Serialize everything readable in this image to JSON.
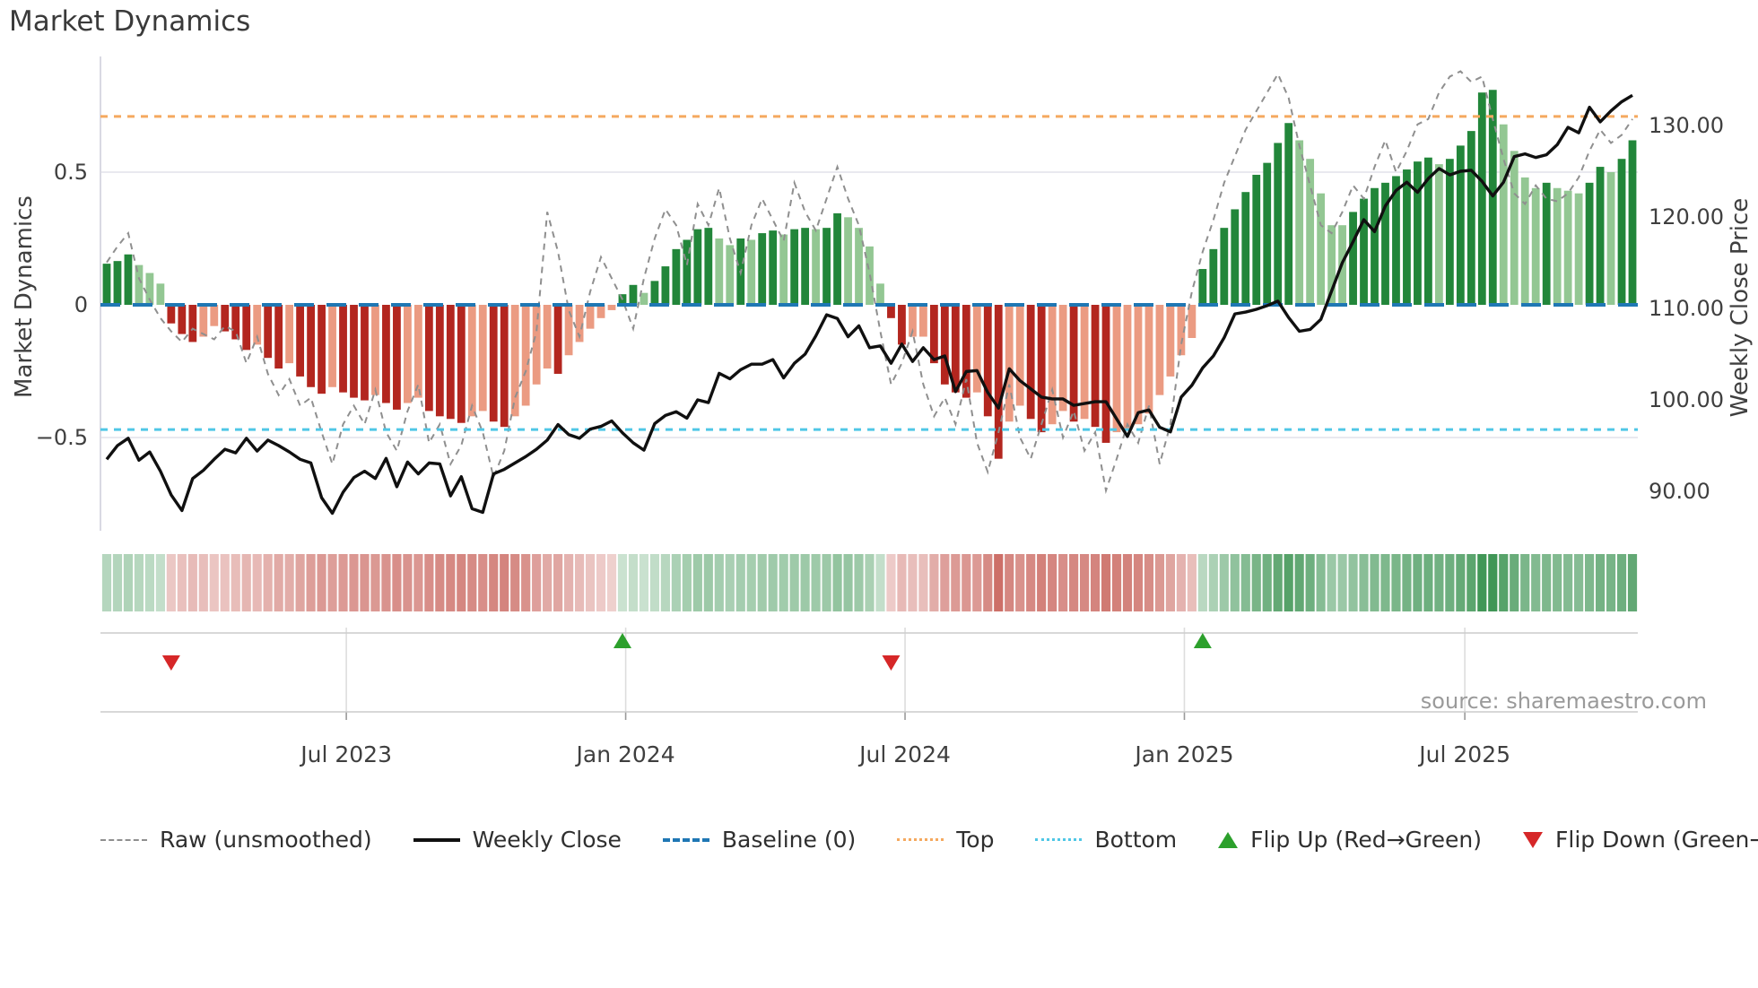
{
  "title": "Market Dynamics",
  "source_text": "source: sharemaestro.com",
  "axes": {
    "left_label": "Market Dynamics",
    "right_label": "Weekly Close Price",
    "left_ticks": [
      {
        "label": "0.5",
        "value": 0.5
      },
      {
        "label": "0",
        "value": 0
      },
      {
        "label": "−0.5",
        "value": -0.5
      }
    ],
    "right_ticks": [
      {
        "label": "130.00",
        "value": 130
      },
      {
        "label": "120.00",
        "value": 120
      },
      {
        "label": "110.00",
        "value": 110
      },
      {
        "label": "100.00",
        "value": 100
      },
      {
        "label": "90.00",
        "value": 90
      }
    ],
    "x_ticks": [
      {
        "label": "Jul 2023",
        "week": 22.3
      },
      {
        "label": "Jan 2024",
        "week": 48.3
      },
      {
        "label": "Jul 2024",
        "week": 74.3
      },
      {
        "label": "Jan 2025",
        "week": 100.3
      },
      {
        "label": "Jul 2025",
        "week": 126.4
      }
    ]
  },
  "legend": {
    "items": [
      {
        "label": "Raw (unsmoothed)",
        "swatch": "raw"
      },
      {
        "label": "Weekly Close",
        "swatch": "close"
      },
      {
        "label": "Baseline (0)",
        "swatch": "baseline"
      },
      {
        "label": "Top",
        "swatch": "top"
      },
      {
        "label": "Bottom",
        "swatch": "bottom"
      },
      {
        "label": "Flip Up (Red→Green)",
        "swatch": "flip_up"
      },
      {
        "label": "Flip Down (Green→Red)",
        "swatch": "flip_down"
      }
    ]
  },
  "colors": {
    "bar_up_strong": "#22863a",
    "bar_up_light": "#93c793",
    "bar_down_strong": "#b3261f",
    "bar_down_light": "#eb9b82",
    "weekly_close": "#101010",
    "raw": "#8f8f8f",
    "baseline": "#1f77b4",
    "top": "#f5a95f",
    "bottom": "#4fc7e6",
    "flip_up": "#2ca02c",
    "flip_down": "#d62728",
    "grid": "#e9e9ef",
    "strip_line": "#cccccc",
    "strip_grid": "#dddddd",
    "axis_text": "#3f3f3f",
    "heat_up": "#2e8c46",
    "heat_down": "#b9372d"
  },
  "chart_data": {
    "type": "composite",
    "subtype": "oscillator bars + price line + raw dashed line + heatmap + flip markers",
    "frequency": "weekly",
    "n_weeks": 143,
    "title": "Market Dynamics",
    "ylabel_left": "Market Dynamics",
    "ylabel_right": "Weekly Close Price",
    "ylim_left": [
      -0.85,
      0.94
    ],
    "ylim_right": [
      85.7,
      137.5
    ],
    "baseline": 0,
    "top_band": 0.71,
    "bottom_band": -0.47,
    "grid": "horizontal at 0.5, 0, -0.5",
    "legend_position": "bottom row",
    "oscillator_bars": [
      0.155,
      0.165,
      0.19,
      0.15,
      0.12,
      0.08,
      -0.07,
      -0.11,
      -0.14,
      -0.12,
      -0.08,
      -0.1,
      -0.13,
      -0.17,
      -0.15,
      -0.2,
      -0.24,
      -0.22,
      -0.27,
      -0.31,
      -0.335,
      -0.31,
      -0.33,
      -0.35,
      -0.36,
      -0.34,
      -0.37,
      -0.395,
      -0.37,
      -0.35,
      -0.4,
      -0.42,
      -0.43,
      -0.445,
      -0.42,
      -0.4,
      -0.44,
      -0.46,
      -0.42,
      -0.38,
      -0.3,
      -0.24,
      -0.26,
      -0.19,
      -0.14,
      -0.09,
      -0.05,
      -0.02,
      0.04,
      0.075,
      0.045,
      0.09,
      0.145,
      0.21,
      0.245,
      0.285,
      0.29,
      0.25,
      0.225,
      0.25,
      0.245,
      0.27,
      0.28,
      0.265,
      0.285,
      0.29,
      0.285,
      0.29,
      0.345,
      0.33,
      0.29,
      0.22,
      0.08,
      -0.05,
      -0.15,
      -0.12,
      -0.12,
      -0.22,
      -0.3,
      -0.33,
      -0.35,
      -0.33,
      -0.42,
      -0.58,
      -0.44,
      -0.38,
      -0.43,
      -0.48,
      -0.45,
      -0.4,
      -0.44,
      -0.43,
      -0.46,
      -0.52,
      -0.48,
      -0.47,
      -0.45,
      -0.41,
      -0.34,
      -0.27,
      -0.19,
      -0.125,
      0.135,
      0.21,
      0.29,
      0.36,
      0.425,
      0.49,
      0.535,
      0.61,
      0.685,
      0.62,
      0.55,
      0.42,
      0.3,
      0.3,
      0.35,
      0.4,
      0.44,
      0.46,
      0.485,
      0.51,
      0.54,
      0.555,
      0.53,
      0.55,
      0.6,
      0.655,
      0.8,
      0.81,
      0.68,
      0.58,
      0.48,
      0.44,
      0.46,
      0.44,
      0.43,
      0.42,
      0.46,
      0.52,
      0.5,
      0.55,
      0.62
    ],
    "raw_unsmoothed": [
      0.16,
      0.22,
      0.27,
      0.1,
      0.02,
      -0.05,
      -0.1,
      -0.14,
      -0.09,
      -0.11,
      -0.13,
      -0.08,
      -0.1,
      -0.22,
      -0.12,
      -0.26,
      -0.34,
      -0.28,
      -0.38,
      -0.35,
      -0.48,
      -0.6,
      -0.45,
      -0.38,
      -0.45,
      -0.32,
      -0.48,
      -0.55,
      -0.4,
      -0.3,
      -0.52,
      -0.45,
      -0.6,
      -0.53,
      -0.38,
      -0.48,
      -0.65,
      -0.55,
      -0.35,
      -0.25,
      -0.1,
      0.35,
      0.2,
      -0.02,
      -0.12,
      0.05,
      0.18,
      0.1,
      0.02,
      -0.09,
      0.1,
      0.25,
      0.36,
      0.3,
      0.15,
      0.38,
      0.3,
      0.44,
      0.25,
      0.12,
      0.3,
      0.4,
      0.32,
      0.24,
      0.46,
      0.35,
      0.28,
      0.4,
      0.52,
      0.4,
      0.3,
      0.12,
      -0.1,
      -0.3,
      -0.22,
      -0.1,
      -0.3,
      -0.42,
      -0.35,
      -0.45,
      -0.28,
      -0.52,
      -0.63,
      -0.48,
      -0.3,
      -0.5,
      -0.58,
      -0.45,
      -0.32,
      -0.5,
      -0.4,
      -0.55,
      -0.48,
      -0.7,
      -0.58,
      -0.45,
      -0.52,
      -0.38,
      -0.6,
      -0.45,
      -0.15,
      0.05,
      0.2,
      0.32,
      0.46,
      0.56,
      0.66,
      0.73,
      0.8,
      0.87,
      0.78,
      0.6,
      0.45,
      0.3,
      0.27,
      0.35,
      0.45,
      0.4,
      0.52,
      0.62,
      0.5,
      0.58,
      0.68,
      0.7,
      0.8,
      0.86,
      0.88,
      0.84,
      0.86,
      0.7,
      0.55,
      0.42,
      0.38,
      0.45,
      0.4,
      0.39,
      0.42,
      0.48,
      0.58,
      0.66,
      0.61,
      0.64,
      0.7
    ],
    "weekly_close": [
      93.5,
      95.0,
      95.8,
      93.4,
      94.3,
      92.2,
      89.6,
      87.9,
      91.4,
      92.3,
      93.5,
      94.6,
      94.2,
      95.8,
      94.4,
      95.6,
      95.0,
      94.3,
      93.5,
      93.1,
      89.3,
      87.6,
      89.9,
      91.5,
      92.2,
      91.4,
      93.6,
      90.5,
      93.2,
      91.9,
      93.1,
      93.0,
      89.5,
      91.6,
      88.1,
      87.7,
      91.9,
      92.4,
      93.1,
      93.8,
      94.6,
      95.6,
      97.3,
      96.2,
      95.8,
      96.8,
      97.1,
      97.7,
      96.4,
      95.3,
      94.5,
      97.4,
      98.3,
      98.7,
      98.0,
      100.0,
      99.7,
      102.9,
      102.3,
      103.3,
      103.9,
      103.9,
      104.4,
      102.4,
      104.0,
      105.0,
      107.0,
      109.3,
      108.9,
      106.9,
      108.1,
      105.7,
      105.9,
      104.0,
      106.1,
      104.2,
      105.7,
      104.4,
      104.8,
      100.9,
      103.1,
      103.2,
      100.8,
      99.1,
      103.4,
      102.1,
      101.2,
      100.3,
      100.1,
      100.1,
      99.4,
      99.6,
      99.8,
      99.8,
      97.9,
      96.0,
      98.6,
      98.9,
      97.0,
      96.5,
      100.3,
      101.6,
      103.5,
      104.8,
      106.8,
      109.4,
      109.6,
      109.9,
      110.3,
      110.8,
      109.0,
      107.5,
      107.7,
      108.8,
      111.9,
      115.0,
      117.3,
      119.7,
      118.4,
      121.2,
      122.9,
      123.8,
      122.7,
      124.2,
      125.3,
      124.6,
      125.0,
      125.1,
      123.9,
      122.3,
      123.8,
      126.6,
      126.9,
      126.5,
      126.8,
      127.9,
      129.8,
      129.2,
      132.0,
      130.4,
      131.6,
      132.6,
      133.3
    ],
    "flips": [
      {
        "week": 6,
        "direction": "down",
        "meaning": "Green→Red"
      },
      {
        "week": 48,
        "direction": "up",
        "meaning": "Red→Green"
      },
      {
        "week": 73,
        "direction": "down",
        "meaning": "Green→Red"
      },
      {
        "week": 102,
        "direction": "up",
        "meaning": "Red→Green"
      }
    ],
    "heatmap": "same weekly oscillator values rendered as red/green intensity strip"
  }
}
